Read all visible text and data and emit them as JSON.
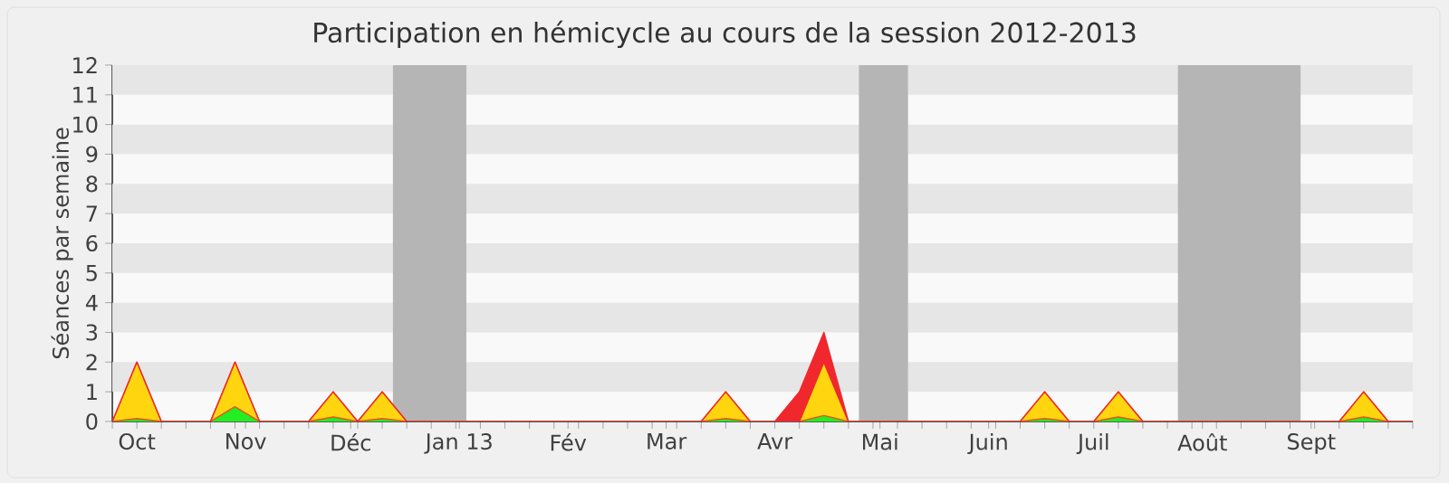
{
  "chart_data": {
    "type": "area",
    "title": "Participation en hémicycle au cours de la session 2012-2013",
    "ylabel": "Séances par semaine",
    "stacked": true,
    "x": [
      "2012-09-24",
      "2012-10-01",
      "2012-10-08",
      "2012-10-15",
      "2012-10-22",
      "2012-10-29",
      "2012-11-05",
      "2012-11-12",
      "2012-11-19",
      "2012-11-26",
      "2012-12-03",
      "2012-12-10",
      "2012-12-17",
      "2012-12-24",
      "2012-12-31",
      "2013-01-07",
      "2013-01-14",
      "2013-01-21",
      "2013-01-28",
      "2013-02-04",
      "2013-02-11",
      "2013-02-18",
      "2013-02-25",
      "2013-03-04",
      "2013-03-11",
      "2013-03-18",
      "2013-03-25",
      "2013-04-01",
      "2013-04-08",
      "2013-04-15",
      "2013-04-22",
      "2013-04-29",
      "2013-05-06",
      "2013-05-13",
      "2013-05-20",
      "2013-05-27",
      "2013-06-03",
      "2013-06-10",
      "2013-06-17",
      "2013-06-24",
      "2013-07-01",
      "2013-07-08",
      "2013-07-15",
      "2013-07-22",
      "2013-07-29",
      "2013-08-05",
      "2013-08-12",
      "2013-08-19",
      "2013-08-26",
      "2013-09-02",
      "2013-09-09",
      "2013-09-16",
      "2013-09-23",
      "2013-09-30"
    ],
    "series": [
      {
        "color": "#22ee22",
        "values": [
          0,
          0.1,
          0,
          0,
          0,
          0.5,
          0,
          0,
          0,
          0.15,
          0,
          0.1,
          0,
          0,
          0,
          0,
          0,
          0,
          0,
          0,
          0,
          0,
          0,
          0,
          0,
          0.1,
          0,
          0,
          0,
          0.2,
          0,
          0,
          0,
          0,
          0,
          0,
          0,
          0,
          0.1,
          0,
          0,
          0.15,
          0,
          0,
          0,
          0,
          0,
          0,
          0,
          0,
          0,
          0.15,
          0,
          0
        ]
      },
      {
        "color": "#ffd50f",
        "values": [
          0,
          1.9,
          0,
          0,
          0,
          1.5,
          0,
          0,
          0,
          0.85,
          0,
          0.9,
          0,
          0,
          0,
          0,
          0,
          0,
          0,
          0,
          0,
          0,
          0,
          0,
          0,
          0.9,
          0,
          0,
          0,
          1.8,
          0,
          0,
          0,
          0,
          0,
          0,
          0,
          0,
          0.9,
          0,
          0,
          0.85,
          0,
          0,
          0,
          0,
          0,
          0,
          0,
          0,
          0,
          0.85,
          0,
          0
        ]
      },
      {
        "color": "#f0282d",
        "values": [
          0,
          0,
          0,
          0,
          0,
          0,
          0,
          0,
          0,
          0,
          0,
          0,
          0,
          0,
          0,
          0,
          0,
          0,
          0,
          0,
          0,
          0,
          0,
          0,
          0,
          0,
          0,
          0,
          1,
          1,
          0,
          0,
          0,
          0,
          0,
          0,
          0,
          0,
          0,
          0,
          0,
          0,
          0,
          0,
          0,
          0,
          0,
          0,
          0,
          0,
          0,
          0,
          0,
          0
        ]
      }
    ],
    "bands": [
      {
        "axis": "y",
        "from": 1,
        "to": 2,
        "color": "#e6e6e6"
      },
      {
        "axis": "y",
        "from": 3,
        "to": 4,
        "color": "#e6e6e6"
      },
      {
        "axis": "y",
        "from": 5,
        "to": 6,
        "color": "#e6e6e6"
      },
      {
        "axis": "y",
        "from": 7,
        "to": 8,
        "color": "#e6e6e6"
      },
      {
        "axis": "y",
        "from": 9,
        "to": 10,
        "color": "#e6e6e6"
      },
      {
        "axis": "y",
        "from": 11,
        "to": 12,
        "color": "#e6e6e6"
      },
      {
        "axis": "x",
        "from": "2012-12-13",
        "to": "2013-01-03",
        "color": "#b5b5b5"
      },
      {
        "axis": "x",
        "from": "2013-04-25",
        "to": "2013-05-09",
        "color": "#b5b5b5"
      },
      {
        "axis": "x",
        "from": "2013-07-25",
        "to": "2013-08-29",
        "color": "#b5b5b5"
      }
    ],
    "xlim": [
      "2012-09-24",
      "2013-09-30"
    ],
    "ylim": [
      0,
      12
    ],
    "yticks": [
      0,
      1,
      2,
      3,
      4,
      5,
      6,
      7,
      8,
      9,
      10,
      11,
      12
    ],
    "xticks": [
      {
        "value": "2012-09-24",
        "label": null
      },
      {
        "value": "2012-10-01",
        "label": "Oct"
      },
      {
        "value": "2012-10-08",
        "label": null
      },
      {
        "value": "2012-10-15",
        "label": null
      },
      {
        "value": "2012-10-22",
        "label": null
      },
      {
        "value": "2012-10-29",
        "label": null
      },
      {
        "value": "2012-11-01",
        "label": "Nov"
      },
      {
        "value": "2012-11-05",
        "label": null
      },
      {
        "value": "2012-11-12",
        "label": null
      },
      {
        "value": "2012-11-19",
        "label": null
      },
      {
        "value": "2012-11-26",
        "label": null
      },
      {
        "value": "2012-12-03",
        "label": null
      },
      {
        "value": "2012-12-01",
        "label": "Déc"
      },
      {
        "value": "2012-12-10",
        "label": null
      },
      {
        "value": "2012-12-17",
        "label": null
      },
      {
        "value": "2012-12-24",
        "label": null
      },
      {
        "value": "2012-12-31",
        "label": null
      },
      {
        "value": "2013-01-01",
        "label": "Jan 13"
      },
      {
        "value": "2013-01-07",
        "label": null
      },
      {
        "value": "2013-01-14",
        "label": null
      },
      {
        "value": "2013-01-21",
        "label": null
      },
      {
        "value": "2013-01-28",
        "label": null
      },
      {
        "value": "2013-02-01",
        "label": "Fév"
      },
      {
        "value": "2013-02-04",
        "label": null
      },
      {
        "value": "2013-02-11",
        "label": null
      },
      {
        "value": "2013-02-18",
        "label": null
      },
      {
        "value": "2013-02-25",
        "label": null
      },
      {
        "value": "2013-03-01",
        "label": "Mar"
      },
      {
        "value": "2013-03-04",
        "label": null
      },
      {
        "value": "2013-03-11",
        "label": null
      },
      {
        "value": "2013-03-18",
        "label": null
      },
      {
        "value": "2013-03-25",
        "label": null
      },
      {
        "value": "2013-04-01",
        "label": "Avr"
      },
      {
        "value": "2013-04-08",
        "label": null
      },
      {
        "value": "2013-04-15",
        "label": null
      },
      {
        "value": "2013-04-22",
        "label": null
      },
      {
        "value": "2013-04-29",
        "label": null
      },
      {
        "value": "2013-05-01",
        "label": "Mai"
      },
      {
        "value": "2013-05-06",
        "label": null
      },
      {
        "value": "2013-05-13",
        "label": null
      },
      {
        "value": "2013-05-20",
        "label": null
      },
      {
        "value": "2013-05-27",
        "label": null
      },
      {
        "value": "2013-06-01",
        "label": "Juin"
      },
      {
        "value": "2013-06-03",
        "label": null
      },
      {
        "value": "2013-06-10",
        "label": null
      },
      {
        "value": "2013-06-17",
        "label": null
      },
      {
        "value": "2013-06-24",
        "label": null
      },
      {
        "value": "2013-07-01",
        "label": "Juil"
      },
      {
        "value": "2013-07-08",
        "label": null
      },
      {
        "value": "2013-07-15",
        "label": null
      },
      {
        "value": "2013-07-22",
        "label": null
      },
      {
        "value": "2013-07-29",
        "label": null
      },
      {
        "value": "2013-08-01",
        "label": "Août"
      },
      {
        "value": "2013-08-05",
        "label": null
      },
      {
        "value": "2013-08-12",
        "label": null
      },
      {
        "value": "2013-08-19",
        "label": null
      },
      {
        "value": "2013-08-26",
        "label": null
      },
      {
        "value": "2013-09-01",
        "label": "Sept"
      },
      {
        "value": "2013-09-02",
        "label": null
      },
      {
        "value": "2013-09-09",
        "label": null
      },
      {
        "value": "2013-09-16",
        "label": null
      },
      {
        "value": "2013-09-23",
        "label": null
      },
      {
        "value": "2013-09-30",
        "label": null
      }
    ]
  }
}
